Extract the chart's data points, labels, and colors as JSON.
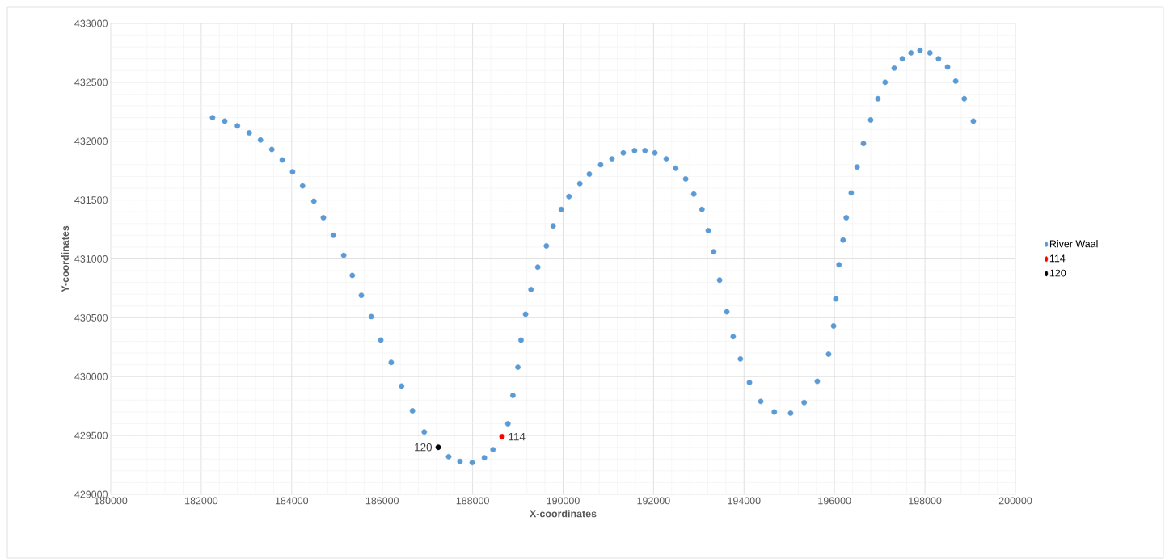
{
  "chart_data": {
    "type": "scatter",
    "xlabel": "X-coordinates",
    "ylabel": "Y-coordinates",
    "xlim": [
      180000,
      200000
    ],
    "ylim": [
      429000,
      433000
    ],
    "xticks": [
      180000,
      182000,
      184000,
      186000,
      188000,
      190000,
      192000,
      194000,
      196000,
      198000,
      200000
    ],
    "yticks": [
      429000,
      429500,
      430000,
      430500,
      431000,
      431500,
      432000,
      432500,
      433000
    ],
    "grid": true,
    "legend": "right",
    "marker": "circle",
    "series": [
      {
        "name": "River Waal",
        "color": "#5b9bd5",
        "x": [
          182250,
          182520,
          182800,
          183060,
          183310,
          183560,
          183790,
          184020,
          184240,
          184490,
          184700,
          184920,
          185150,
          185340,
          185540,
          185760,
          185970,
          186200,
          186430,
          186670,
          186930,
          187470,
          187720,
          187990,
          188260,
          188450,
          188780,
          188890,
          189000,
          189070,
          189170,
          189290,
          189440,
          189630,
          189780,
          189960,
          190130,
          190370,
          190580,
          190830,
          191080,
          191330,
          191580,
          191810,
          192030,
          192280,
          192490,
          192710,
          192890,
          193070,
          193210,
          193330,
          193460,
          193620,
          193760,
          193920,
          194120,
          194370,
          194670,
          195030,
          195330,
          195620,
          195870,
          195980,
          196030,
          196100,
          196190,
          196260,
          196370,
          196500,
          196640,
          196800,
          196960,
          197120,
          197320,
          197500,
          197690,
          197890,
          198110,
          198300,
          198500,
          198680,
          198870,
          199070
        ],
        "values": [
          432200,
          432170,
          432130,
          432070,
          432010,
          431930,
          431840,
          431740,
          431620,
          431490,
          431350,
          431200,
          431030,
          430860,
          430690,
          430510,
          430310,
          430120,
          429920,
          429710,
          429530,
          429320,
          429280,
          429270,
          429310,
          429380,
          429600,
          429840,
          430080,
          430310,
          430530,
          430740,
          430930,
          431110,
          431280,
          431420,
          431530,
          431640,
          431720,
          431800,
          431850,
          431900,
          431920,
          431920,
          431900,
          431850,
          431770,
          431680,
          431550,
          431420,
          431240,
          431060,
          430820,
          430550,
          430340,
          430150,
          429950,
          429790,
          429700,
          429690,
          429780,
          429960,
          430190,
          430430,
          430660,
          430950,
          431160,
          431350,
          431560,
          431780,
          431980,
          432180,
          432360,
          432500,
          432620,
          432700,
          432750,
          432770,
          432750,
          432700,
          432630,
          432510,
          432360,
          432170
        ]
      },
      {
        "name": "114",
        "color": "#ff0000",
        "x": [
          188650
        ],
        "values": [
          429490
        ]
      },
      {
        "name": "120",
        "color": "#000000",
        "x": [
          187240
        ],
        "values": [
          429400
        ]
      }
    ],
    "annotations": [
      {
        "text": "114",
        "x": 188650,
        "y": 429490
      },
      {
        "text": "120",
        "x": 187240,
        "y": 429400
      }
    ]
  }
}
